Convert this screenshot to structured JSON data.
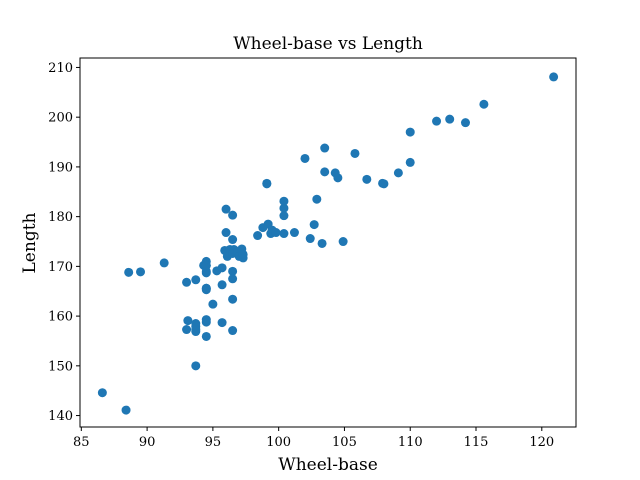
{
  "chart_data": {
    "type": "scatter",
    "title": "Wheel-base vs Length",
    "xlabel": "Wheel-base",
    "ylabel": "Length",
    "xlim": [
      84.9,
      122.6
    ],
    "ylim": [
      137.7,
      211.9
    ],
    "x_ticks": [
      85,
      90,
      95,
      100,
      105,
      110,
      115,
      120
    ],
    "y_ticks": [
      140,
      150,
      160,
      170,
      180,
      190,
      200,
      210
    ],
    "grid": false,
    "marker_color": "#1f77b4",
    "series": [
      {
        "x": [
          86.6,
          88.4,
          88.6,
          89.5,
          91.3,
          93.0,
          93.0,
          93.1,
          93.7,
          93.7,
          93.7,
          93.7,
          93.7,
          93.7,
          94.3,
          94.5,
          94.5,
          94.5,
          94.5,
          94.5,
          94.5,
          94.5,
          94.5,
          94.5,
          94.5,
          94.5,
          95.0,
          95.3,
          95.7,
          95.7,
          95.7,
          95.9,
          96.0,
          96.0,
          96.1,
          96.3,
          96.5,
          96.5,
          96.5,
          96.5,
          96.5,
          96.5,
          96.5,
          96.6,
          96.9,
          97.0,
          97.2,
          97.3,
          97.3,
          98.4,
          98.8,
          99.1,
          99.1,
          99.2,
          99.4,
          99.5,
          99.8,
          100.4,
          100.4,
          100.4,
          100.4,
          101.2,
          102.0,
          102.4,
          102.7,
          102.9,
          103.3,
          103.5,
          103.5,
          104.3,
          104.5,
          104.9,
          105.8,
          106.7,
          107.9,
          108.0,
          109.1,
          110.0,
          110.0,
          112.0,
          113.0,
          114.2,
          115.6,
          120.9
        ],
        "y": [
          144.6,
          141.1,
          168.8,
          168.9,
          170.7,
          157.3,
          166.8,
          159.1,
          150.0,
          157.9,
          156.9,
          158.5,
          167.3,
          157.3,
          170.2,
          165.3,
          165.6,
          168.7,
          170.2,
          171.0,
          155.9,
          158.8,
          159.3,
          165.6,
          169.0,
          170.2,
          162.4,
          169.1,
          158.7,
          166.3,
          169.7,
          173.2,
          181.5,
          176.8,
          172.0,
          173.4,
          175.4,
          169.0,
          172.6,
          167.5,
          163.4,
          157.1,
          180.3,
          173.4,
          173.0,
          172.0,
          173.5,
          171.7,
          172.4,
          176.2,
          177.8,
          186.6,
          186.7,
          178.5,
          176.6,
          177.3,
          176.8,
          176.6,
          180.2,
          181.7,
          183.1,
          176.8,
          191.7,
          175.6,
          178.4,
          183.5,
          174.6,
          189.0,
          193.8,
          188.8,
          187.8,
          175.0,
          192.7,
          187.5,
          186.7,
          186.6,
          188.8,
          197.0,
          190.9,
          199.2,
          199.6,
          198.9,
          202.6,
          208.1
        ]
      }
    ]
  }
}
